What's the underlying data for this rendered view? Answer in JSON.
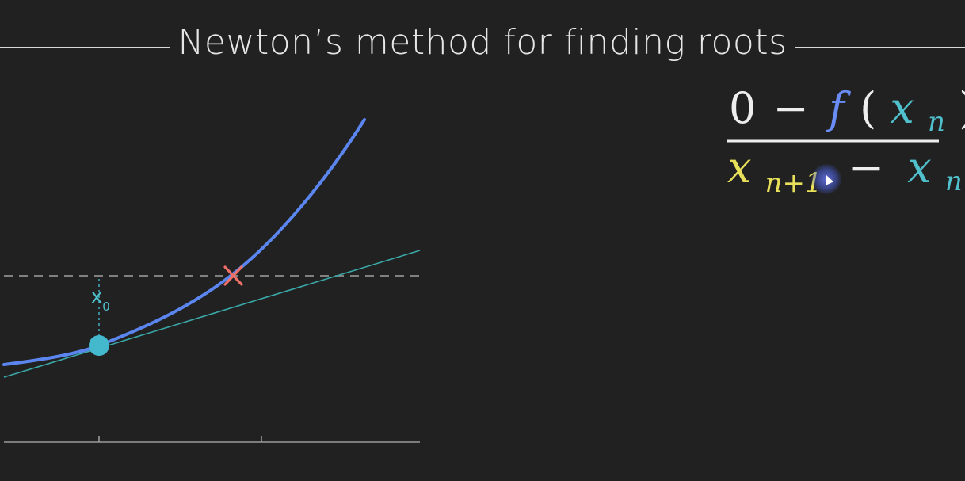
{
  "title": "Newton’s method for finding roots",
  "colors": {
    "background": "#212121",
    "curve": "#5b86f0",
    "tangent": "#3aa8a8",
    "point": "#44b8cc",
    "cross": "#f07068",
    "guide": "#9a9a9a",
    "formula_white": "#eeeeee",
    "formula_blue": "#6a8df5",
    "formula_teal": "#50c0cc",
    "formula_yellow": "#e8e05a"
  },
  "diagram": {
    "point_label_main": "x",
    "point_label_sub": "0"
  },
  "formula": {
    "numerator": {
      "zero": "0",
      "minus": "−",
      "f": "f",
      "open_paren": "(",
      "x": "x",
      "x_sub": "n",
      "close_paren": ")"
    },
    "denominator": {
      "x_next": "x",
      "x_next_sub": "n+1",
      "minus": "−",
      "x": "x",
      "x_sub": "n"
    }
  },
  "icons": [
    "cursor-highlight-icon",
    "cursor-arrow-icon",
    "cross-marker-icon"
  ]
}
